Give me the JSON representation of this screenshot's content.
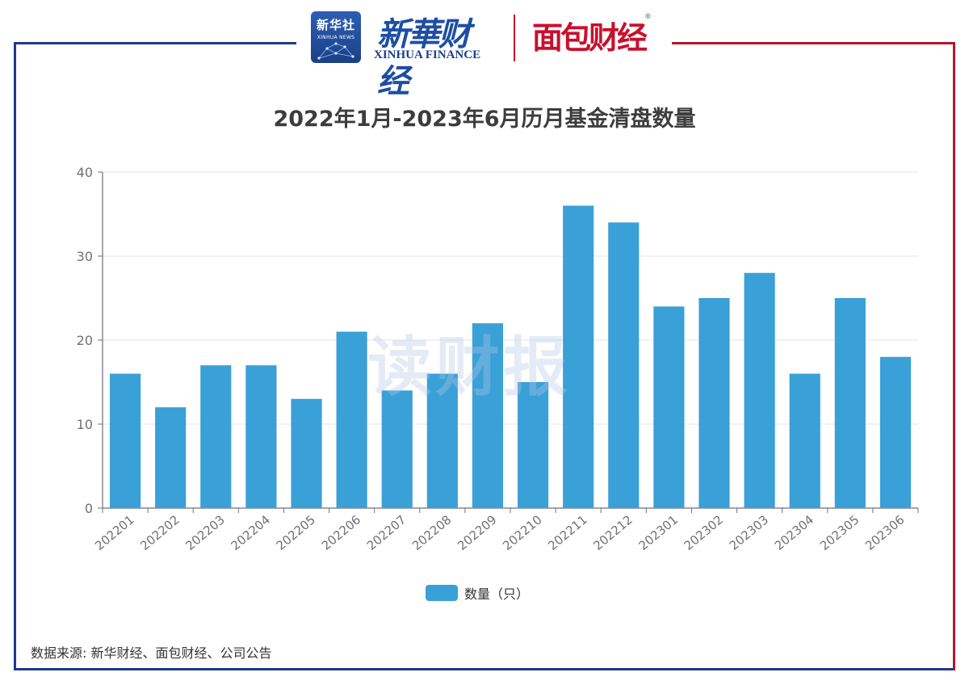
{
  "header": {
    "badge_cn": "新华社",
    "badge_en": "XINHUA NEWS",
    "brand_cn": "新華财经",
    "brand_en": "XINHUA FINANCE",
    "partner_cn": "面包财经",
    "partner_reg": "®"
  },
  "watermark": "读财报",
  "source_note": "数据来源: 新华财经、面包财经、公司公告",
  "colors": {
    "bar": "#3aa0d8",
    "frame_left": "#1e3a8a",
    "frame_right": "#b3162b",
    "grid": "#e6e6e6"
  },
  "chart_data": {
    "type": "bar",
    "title": "2022年1月-2023年6月历月基金清盘数量",
    "categories": [
      "202201",
      "202202",
      "202203",
      "202204",
      "202205",
      "202206",
      "202207",
      "202208",
      "202209",
      "202210",
      "202211",
      "202212",
      "202301",
      "202302",
      "202303",
      "202304",
      "202305",
      "202306"
    ],
    "series": [
      {
        "name": "数量（只）",
        "values": [
          16,
          12,
          17,
          17,
          13,
          21,
          14,
          16,
          22,
          15,
          36,
          34,
          24,
          25,
          28,
          16,
          25,
          18
        ]
      }
    ],
    "ylim": [
      0,
      40
    ],
    "yticks": [
      0,
      10,
      20,
      30,
      40
    ],
    "grid": true,
    "legend_position": "bottom"
  }
}
